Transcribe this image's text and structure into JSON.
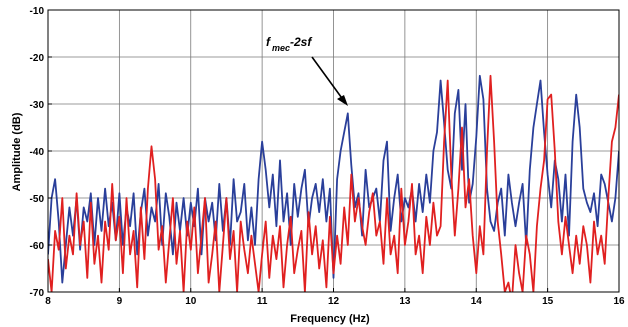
{
  "chart_data": {
    "type": "line",
    "title": "",
    "xlabel": "Frequency (Hz)",
    "ylabel": "Amplitude (dB)",
    "xlim": [
      8,
      16
    ],
    "ylim": [
      -70,
      -10
    ],
    "xticks": [
      8,
      9,
      10,
      11,
      12,
      13,
      14,
      15,
      16
    ],
    "yticks": [
      -10,
      -20,
      -30,
      -40,
      -50,
      -60,
      -70
    ],
    "grid": true,
    "annotation": {
      "text_main": "f",
      "text_sub": "mec",
      "text_tail": "-2sf",
      "point": [
        12.2,
        -33
      ]
    },
    "series": [
      {
        "color": "#2a3f9a",
        "x": [
          8.0,
          8.05,
          8.1,
          8.15,
          8.2,
          8.25,
          8.3,
          8.35,
          8.4,
          8.45,
          8.5,
          8.55,
          8.6,
          8.65,
          8.7,
          8.75,
          8.8,
          8.85,
          8.9,
          8.95,
          9.0,
          9.05,
          9.1,
          9.15,
          9.2,
          9.25,
          9.3,
          9.35,
          9.4,
          9.45,
          9.5,
          9.55,
          9.6,
          9.65,
          9.7,
          9.75,
          9.8,
          9.85,
          9.9,
          9.95,
          10.0,
          10.05,
          10.1,
          10.15,
          10.2,
          10.25,
          10.3,
          10.35,
          10.4,
          10.45,
          10.5,
          10.55,
          10.6,
          10.65,
          10.7,
          10.75,
          10.8,
          10.85,
          10.9,
          10.95,
          11.0,
          11.05,
          11.1,
          11.15,
          11.2,
          11.25,
          11.3,
          11.35,
          11.4,
          11.45,
          11.5,
          11.55,
          11.6,
          11.65,
          11.7,
          11.75,
          11.8,
          11.85,
          11.9,
          11.95,
          12.0,
          12.05,
          12.1,
          12.15,
          12.2,
          12.25,
          12.3,
          12.35,
          12.4,
          12.45,
          12.5,
          12.55,
          12.6,
          12.65,
          12.7,
          12.75,
          12.8,
          12.85,
          12.9,
          12.95,
          13.0,
          13.05,
          13.1,
          13.15,
          13.2,
          13.25,
          13.3,
          13.35,
          13.4,
          13.45,
          13.5,
          13.55,
          13.6,
          13.65,
          13.7,
          13.75,
          13.8,
          13.85,
          13.9,
          13.95,
          14.0,
          14.05,
          14.1,
          14.15,
          14.2,
          14.25,
          14.3,
          14.35,
          14.4,
          14.45,
          14.5,
          14.55,
          14.6,
          14.65,
          14.7,
          14.75,
          14.8,
          14.85,
          14.9,
          14.95,
          15.0,
          15.05,
          15.1,
          15.15,
          15.2,
          15.25,
          15.3,
          15.35,
          15.4,
          15.45,
          15.5,
          15.55,
          15.6,
          15.65,
          15.7,
          15.75,
          15.8,
          15.85,
          15.9,
          15.95,
          16.0
        ],
        "values": [
          -62,
          -50,
          -46,
          -55,
          -68,
          -60,
          -52,
          -58,
          -50,
          -61,
          -52,
          -55,
          -49,
          -60,
          -50,
          -57,
          -48,
          -56,
          -51,
          -59,
          -49,
          -60,
          -52,
          -56,
          -49,
          -62,
          -53,
          -48,
          -58,
          -52,
          -55,
          -47,
          -60,
          -49,
          -54,
          -62,
          -51,
          -57,
          -50,
          -58,
          -51,
          -56,
          -48,
          -62,
          -50,
          -55,
          -51,
          -59,
          -47,
          -57,
          -50,
          -60,
          -46,
          -55,
          -53,
          -47,
          -59,
          -52,
          -60,
          -46,
          -38,
          -44,
          -52,
          -45,
          -56,
          -42,
          -55,
          -49,
          -60,
          -47,
          -54,
          -48,
          -44,
          -56,
          -50,
          -47,
          -53,
          -46,
          -55,
          -48,
          -67,
          -46,
          -40,
          -36,
          -32,
          -43,
          -52,
          -49,
          -58,
          -44,
          -52,
          -50,
          -48,
          -55,
          -42,
          -38,
          -57,
          -50,
          -45,
          -55,
          -50,
          -52,
          -48,
          -55,
          -47,
          -53,
          -45,
          -51,
          -40,
          -36,
          -25,
          -34,
          -44,
          -48,
          -32,
          -27,
          -44,
          -30,
          -51,
          -47,
          -37,
          -24,
          -29,
          -48,
          -55,
          -57,
          -51,
          -48,
          -58,
          -45,
          -51,
          -56,
          -51,
          -47,
          -60,
          -44,
          -35,
          -30,
          -25,
          -36,
          -45,
          -52,
          -42,
          -46,
          -55,
          -45,
          -58,
          -38,
          -28,
          -35,
          -48,
          -51,
          -53,
          -49,
          -56,
          -45,
          -47,
          -51,
          -55,
          -50,
          -40
        ]
      },
      {
        "color": "#e02020",
        "x": [
          8.0,
          8.05,
          8.1,
          8.15,
          8.2,
          8.25,
          8.3,
          8.35,
          8.4,
          8.45,
          8.5,
          8.55,
          8.6,
          8.65,
          8.7,
          8.75,
          8.8,
          8.85,
          8.9,
          8.95,
          9.0,
          9.05,
          9.1,
          9.15,
          9.2,
          9.25,
          9.3,
          9.35,
          9.4,
          9.45,
          9.5,
          9.55,
          9.6,
          9.65,
          9.7,
          9.75,
          9.8,
          9.85,
          9.9,
          9.95,
          10.0,
          10.05,
          10.1,
          10.15,
          10.2,
          10.25,
          10.3,
          10.35,
          10.4,
          10.45,
          10.5,
          10.55,
          10.6,
          10.65,
          10.7,
          10.75,
          10.8,
          10.85,
          10.9,
          10.95,
          11.0,
          11.05,
          11.1,
          11.15,
          11.2,
          11.25,
          11.3,
          11.35,
          11.4,
          11.45,
          11.5,
          11.55,
          11.6,
          11.65,
          11.7,
          11.75,
          11.8,
          11.85,
          11.9,
          11.95,
          12.0,
          12.05,
          12.1,
          12.15,
          12.2,
          12.25,
          12.3,
          12.35,
          12.4,
          12.45,
          12.5,
          12.55,
          12.6,
          12.65,
          12.7,
          12.75,
          12.8,
          12.85,
          12.9,
          12.95,
          13.0,
          13.05,
          13.1,
          13.15,
          13.2,
          13.25,
          13.3,
          13.35,
          13.4,
          13.45,
          13.5,
          13.55,
          13.6,
          13.65,
          13.7,
          13.75,
          13.8,
          13.85,
          13.9,
          13.95,
          14.0,
          14.05,
          14.1,
          14.15,
          14.2,
          14.25,
          14.3,
          14.35,
          14.4,
          14.45,
          14.5,
          14.55,
          14.6,
          14.65,
          14.7,
          14.75,
          14.8,
          14.85,
          14.9,
          14.95,
          15.0,
          15.05,
          15.1,
          15.15,
          15.2,
          15.25,
          15.3,
          15.35,
          15.4,
          15.45,
          15.5,
          15.55,
          15.6,
          15.65,
          15.7,
          15.75,
          15.8,
          15.85,
          15.9,
          15.95,
          16.0
        ],
        "values": [
          -63,
          -70,
          -57,
          -61,
          -50,
          -65,
          -58,
          -62,
          -49,
          -60,
          -55,
          -67,
          -51,
          -64,
          -58,
          -68,
          -55,
          -61,
          -47,
          -59,
          -54,
          -66,
          -50,
          -62,
          -57,
          -69,
          -52,
          -63,
          -48,
          -39,
          -46,
          -61,
          -56,
          -68,
          -59,
          -50,
          -64,
          -57,
          -70,
          -55,
          -61,
          -52,
          -66,
          -58,
          -50,
          -68,
          -62,
          -55,
          -70,
          -60,
          -50,
          -63,
          -57,
          -70,
          -55,
          -61,
          -66,
          -58,
          -64,
          -70,
          -62,
          -55,
          -67,
          -58,
          -63,
          -56,
          -69,
          -60,
          -54,
          -66,
          -61,
          -57,
          -70,
          -53,
          -62,
          -56,
          -65,
          -59,
          -69,
          -54,
          -66,
          -58,
          -64,
          -52,
          -60,
          -45,
          -55,
          -50,
          -56,
          -60,
          -53,
          -49,
          -58,
          -55,
          -64,
          -50,
          -62,
          -58,
          -66,
          -48,
          -60,
          -55,
          -47,
          -62,
          -58,
          -66,
          -54,
          -60,
          -51,
          -58,
          -56,
          -38,
          -25,
          -45,
          -58,
          -48,
          -35,
          -52,
          -46,
          -58,
          -66,
          -56,
          -62,
          -40,
          -24,
          -38,
          -55,
          -62,
          -70,
          -68,
          -72,
          -60,
          -66,
          -70,
          -58,
          -62,
          -70,
          -56,
          -48,
          -42,
          -29,
          -28,
          -40,
          -55,
          -62,
          -54,
          -60,
          -66,
          -58,
          -64,
          -56,
          -60,
          -68,
          -55,
          -62,
          -58,
          -64,
          -50,
          -38,
          -35,
          -28
        ]
      }
    ]
  }
}
